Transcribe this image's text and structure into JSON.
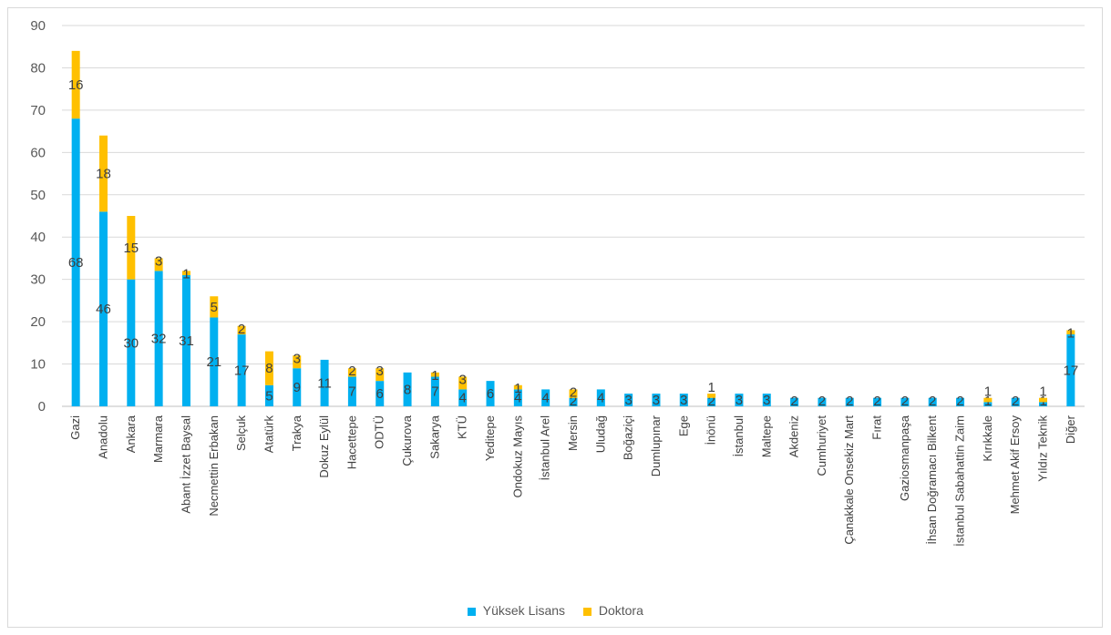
{
  "chart_data": {
    "type": "bar",
    "stacked": true,
    "title": "",
    "xlabel": "",
    "ylabel": "",
    "ylim": [
      0,
      90
    ],
    "ytick_step": 10,
    "grid": true,
    "legend_position": "bottom",
    "categories": [
      "Gazi",
      "Anadolu",
      "Ankara",
      "Marmara",
      "Abant İzzet Baysal",
      "Necmettin Erbakan",
      "Selçuk",
      "Atatürk",
      "Trakya",
      "Dokuz Eylül",
      "Hacettepe",
      "ODTÜ",
      "Çukurova",
      "Sakarya",
      "KTÜ",
      "Yeditepe",
      "Ondokuz Mayıs",
      "İstanbul Arel",
      "Mersin",
      "Uludağ",
      "Boğaziçi",
      "Dumlupınar",
      "Ege",
      "İnönü",
      "İstanbul",
      "Maltepe",
      "Akdeniz",
      "Cumhuriyet",
      "Çanakkale Onsekiz Mart",
      "Fırat",
      "Gaziosmanpaşa",
      "İhsan Doğramacı Bilkent",
      "İstanbul Sabahattin Zaim",
      "Kırıkkale",
      "Mehmet Akif Ersoy",
      "Yıldız Teknik",
      "Diğer"
    ],
    "series": [
      {
        "name": "Yüksek Lisans",
        "color": "#00B0F0",
        "values": [
          68,
          46,
          30,
          32,
          31,
          21,
          17,
          5,
          9,
          11,
          7,
          6,
          8,
          7,
          4,
          6,
          4,
          4,
          2,
          4,
          3,
          3,
          3,
          2,
          3,
          3,
          2,
          2,
          2,
          2,
          2,
          2,
          2,
          1,
          2,
          1,
          17
        ],
        "labels": [
          "68",
          "46",
          "30",
          "32",
          "31",
          "21",
          "17",
          "5",
          "9",
          "11",
          "7",
          "6",
          "8",
          "7",
          "4",
          "6",
          "4",
          "4",
          "2",
          "4",
          "3",
          "3",
          "3",
          "2",
          "3",
          "3",
          "2",
          "2",
          "2",
          "2",
          "2",
          "2",
          "2",
          "1",
          "2",
          "1",
          "17"
        ]
      },
      {
        "name": "Doktora",
        "color": "#FFC000",
        "values": [
          16,
          18,
          15,
          3,
          1,
          5,
          2,
          8,
          3,
          0,
          2,
          3,
          0,
          1,
          3,
          0,
          1,
          0,
          2,
          0,
          0,
          0,
          0,
          1,
          0,
          0,
          0,
          0,
          0,
          0,
          0,
          0,
          0,
          1,
          0,
          1,
          1
        ],
        "labels": [
          "16",
          "18",
          "15",
          "3",
          "1",
          "5",
          "2",
          "8",
          "3",
          "",
          "2",
          "3",
          "",
          "1",
          "3",
          "",
          "1",
          "",
          "2",
          "",
          "",
          "",
          "",
          "1",
          "",
          "",
          "",
          "",
          "",
          "",
          "",
          "",
          "",
          "1",
          "",
          "1",
          "1"
        ]
      }
    ]
  }
}
